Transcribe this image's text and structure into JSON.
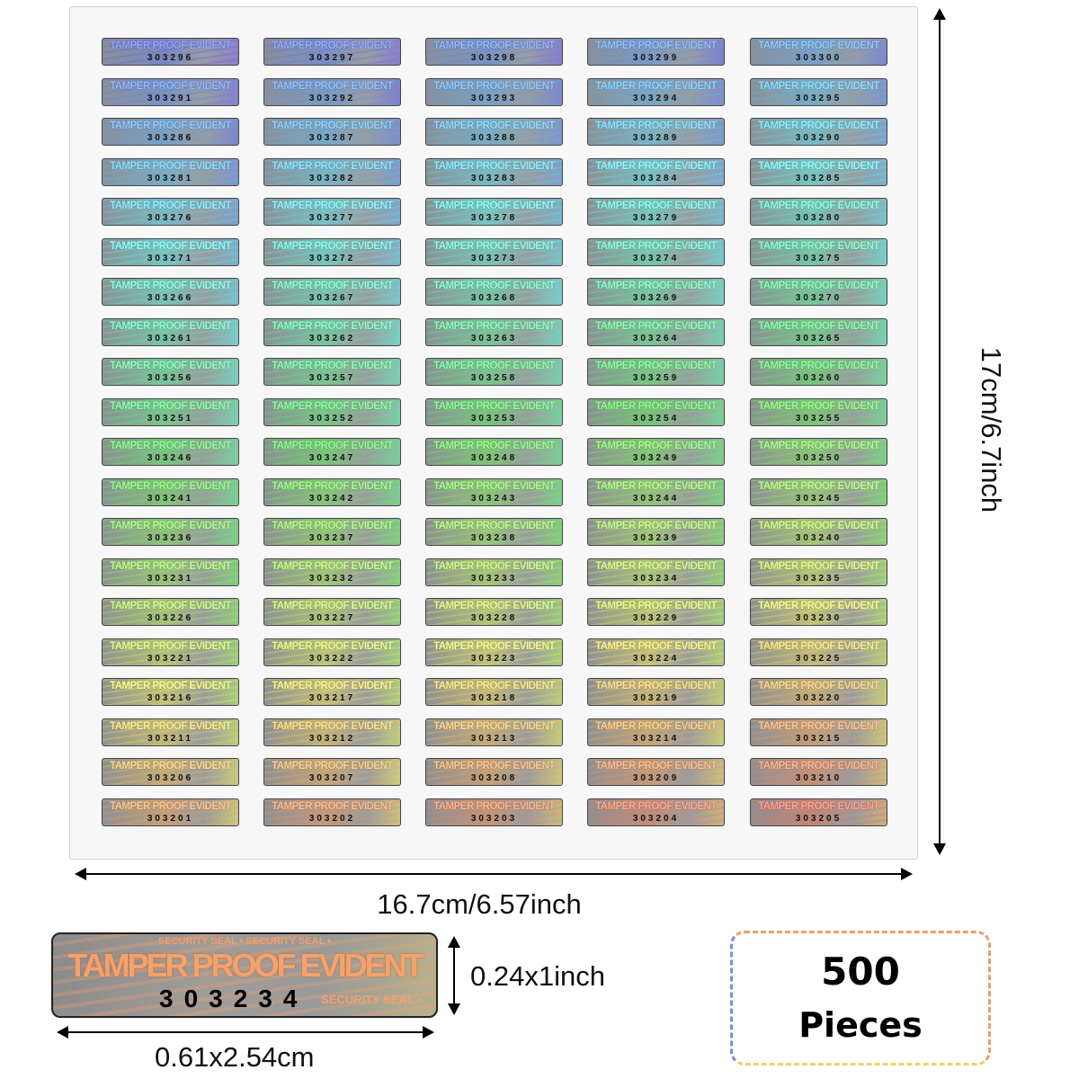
{
  "sticker_label": "TAMPER PROOF EVIDENT",
  "sticker_background_text": "SECURITY SEAL • SECURITY SEAL •",
  "serial_rows": [
    [
      "303296",
      "303297",
      "303298",
      "303299",
      "303300"
    ],
    [
      "303291",
      "303292",
      "303293",
      "303294",
      "303295"
    ],
    [
      "303286",
      "303287",
      "303288",
      "303289",
      "303290"
    ],
    [
      "303281",
      "303282",
      "303283",
      "303284",
      "303285"
    ],
    [
      "303276",
      "303277",
      "303278",
      "303279",
      "303280"
    ],
    [
      "303271",
      "303272",
      "303273",
      "303274",
      "303275"
    ],
    [
      "303266",
      "303267",
      "303268",
      "303269",
      "303270"
    ],
    [
      "303261",
      "303262",
      "303263",
      "303264",
      "303265"
    ],
    [
      "303256",
      "303257",
      "303258",
      "303259",
      "303260"
    ],
    [
      "303251",
      "303252",
      "303253",
      "303254",
      "303255"
    ],
    [
      "303246",
      "303247",
      "303248",
      "303249",
      "303250"
    ],
    [
      "303241",
      "303242",
      "303243",
      "303244",
      "303245"
    ],
    [
      "303236",
      "303237",
      "303238",
      "303239",
      "303240"
    ],
    [
      "303231",
      "303232",
      "303233",
      "303234",
      "303235"
    ],
    [
      "303226",
      "303227",
      "303228",
      "303229",
      "303230"
    ],
    [
      "303221",
      "303222",
      "303223",
      "303224",
      "303225"
    ],
    [
      "303216",
      "303217",
      "303218",
      "303219",
      "303220"
    ],
    [
      "303211",
      "303212",
      "303213",
      "303214",
      "303215"
    ],
    [
      "303206",
      "303207",
      "303208",
      "303209",
      "303210"
    ],
    [
      "303201",
      "303202",
      "303203",
      "303204",
      "303205"
    ]
  ],
  "dimensions": {
    "sheet_height": "17cm/6.7inch",
    "sheet_width": "16.7cm/6.57inch",
    "sticker_height": "0.24x1inch",
    "sticker_width": "0.61x2.54cm"
  },
  "sample_sticker": {
    "label": "TAMPER PROOF EVIDENT",
    "serial": "303234",
    "background_text": "SECURITY SEAL •"
  },
  "quantity": {
    "count": "500",
    "unit": "Pieces"
  },
  "colors": {
    "hologram_top": "#5a7fd8",
    "hologram_middle": "#5fd0c8",
    "hologram_bottom": "#f08060"
  }
}
